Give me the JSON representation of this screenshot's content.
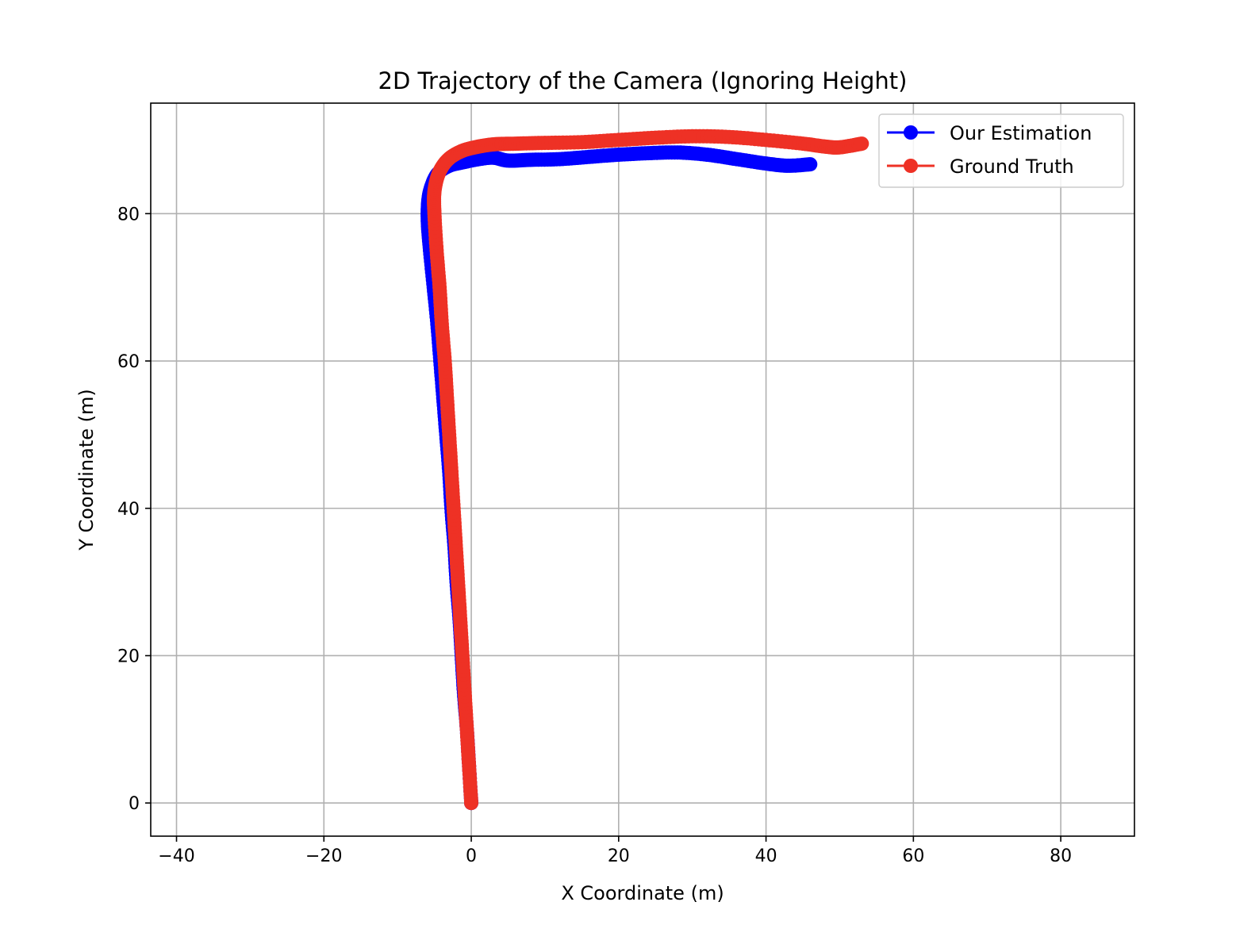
{
  "chart_data": {
    "type": "line",
    "title": "2D Trajectory of the Camera (Ignoring Height)",
    "xlabel": "X Coordinate (m)",
    "ylabel": "Y Coordinate (m)",
    "xlim": [
      -43.5,
      90
    ],
    "ylim": [
      -4.5,
      95
    ],
    "xticks": [
      -40,
      -20,
      0,
      20,
      40,
      60,
      80
    ],
    "xtick_labels": [
      "−40",
      "−20",
      "0",
      "20",
      "40",
      "60",
      "80"
    ],
    "yticks": [
      0,
      20,
      40,
      60,
      80
    ],
    "ytick_labels": [
      "0",
      "20",
      "40",
      "60",
      "80"
    ],
    "grid": true,
    "legend_position": "top-right",
    "series": [
      {
        "name": "Our Estimation",
        "color": "#0000ff",
        "marker": "circle",
        "points": [
          [
            0,
            0
          ],
          [
            -0.3,
            5
          ],
          [
            -0.6,
            10
          ],
          [
            -1.0,
            15
          ],
          [
            -1.3,
            20
          ],
          [
            -1.6,
            25
          ],
          [
            -2.0,
            30
          ],
          [
            -2.3,
            35
          ],
          [
            -2.7,
            40
          ],
          [
            -3.0,
            45
          ],
          [
            -3.4,
            50
          ],
          [
            -3.8,
            55
          ],
          [
            -4.2,
            60
          ],
          [
            -4.6,
            65
          ],
          [
            -5.1,
            70
          ],
          [
            -5.6,
            75
          ],
          [
            -5.9,
            79
          ],
          [
            -5.8,
            82
          ],
          [
            -5.3,
            84
          ],
          [
            -4.5,
            85.5
          ],
          [
            -3.0,
            86.5
          ],
          [
            -1.0,
            87.0
          ],
          [
            1,
            87.4
          ],
          [
            3,
            87.6
          ],
          [
            5,
            87.2
          ],
          [
            8,
            87.3
          ],
          [
            12,
            87.4
          ],
          [
            16,
            87.7
          ],
          [
            20,
            88.0
          ],
          [
            24,
            88.2
          ],
          [
            28,
            88.3
          ],
          [
            32,
            88.0
          ],
          [
            36,
            87.4
          ],
          [
            40,
            86.8
          ],
          [
            43,
            86.5
          ],
          [
            46,
            86.7
          ]
        ]
      },
      {
        "name": "Ground Truth",
        "color": "#ee3125",
        "marker": "circle",
        "points": [
          [
            0,
            0
          ],
          [
            -0.3,
            5
          ],
          [
            -0.6,
            10
          ],
          [
            -0.9,
            15
          ],
          [
            -1.2,
            20
          ],
          [
            -1.5,
            25
          ],
          [
            -1.8,
            30
          ],
          [
            -2.1,
            35
          ],
          [
            -2.4,
            40
          ],
          [
            -2.7,
            45
          ],
          [
            -3.0,
            50
          ],
          [
            -3.3,
            55
          ],
          [
            -3.6,
            60
          ],
          [
            -4.0,
            65
          ],
          [
            -4.3,
            70
          ],
          [
            -4.7,
            75
          ],
          [
            -5.0,
            80
          ],
          [
            -5.0,
            83
          ],
          [
            -4.4,
            85.5
          ],
          [
            -3.2,
            87.3
          ],
          [
            -1.5,
            88.4
          ],
          [
            0.5,
            89.0
          ],
          [
            3,
            89.4
          ],
          [
            6,
            89.5
          ],
          [
            10,
            89.6
          ],
          [
            15,
            89.7
          ],
          [
            20,
            90.0
          ],
          [
            25,
            90.3
          ],
          [
            30,
            90.5
          ],
          [
            35,
            90.4
          ],
          [
            40,
            90.0
          ],
          [
            45,
            89.5
          ],
          [
            48,
            89.1
          ],
          [
            50,
            89.0
          ],
          [
            53,
            89.5
          ]
        ]
      }
    ]
  }
}
